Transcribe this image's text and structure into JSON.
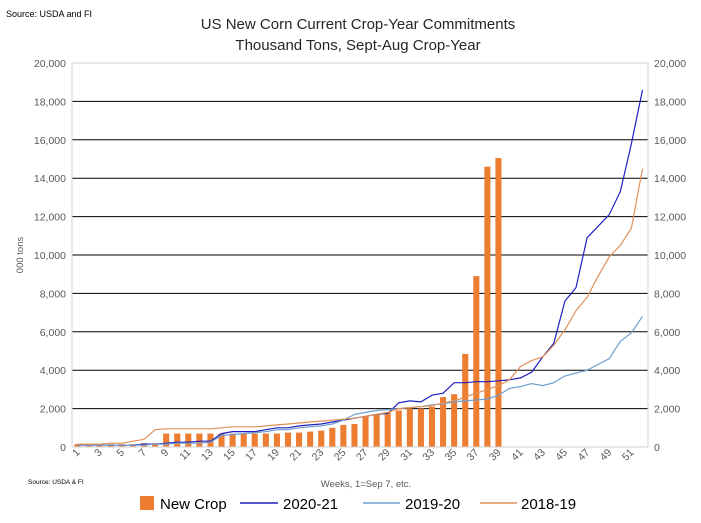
{
  "source_top": "Source: USDA and FI",
  "source_bottom": "Source: USDA & FI",
  "chart_data": {
    "type": "bar",
    "title": "US New Corn Current Crop-Year Commitments",
    "subtitle": "Thousand Tons, Sept-Aug Crop-Year",
    "xlabel": "Weeks, 1=Sep 7, etc.",
    "ylabel": "000 tons",
    "ylim": [
      0,
      20000
    ],
    "yticks": [
      "0",
      "2,000",
      "4,000",
      "6,000",
      "8,000",
      "10,000",
      "12,000",
      "14,000",
      "16,000",
      "18,000",
      "20,000"
    ],
    "y2ticks": [
      "0",
      "2,000",
      "4,000",
      "6,000",
      "8,000",
      "10,000",
      "12,000",
      "14,000",
      "16,000",
      "18,000",
      "20,000"
    ],
    "xticks": [
      "1",
      "3",
      "5",
      "7",
      "9",
      "11",
      "13",
      "15",
      "17",
      "19",
      "21",
      "23",
      "25",
      "27",
      "29",
      "31",
      "33",
      "35",
      "37",
      "39",
      "41",
      "43",
      "45",
      "47",
      "49",
      "51"
    ],
    "weeks": 52,
    "legend": [
      "New Crop",
      "2020-21",
      "2019-20",
      "2018-19"
    ],
    "colors": {
      "New Crop": "#ed7d31",
      "2020-21": "#1f1fbf",
      "2019-20": "#6f9fcf",
      "2018-19": "#e0915a"
    },
    "series": [
      {
        "name": "New Crop",
        "kind": "bar",
        "values": [
          150,
          150,
          150,
          150,
          150,
          150,
          200,
          200,
          700,
          700,
          700,
          700,
          700,
          700,
          700,
          700,
          700,
          700,
          700,
          750,
          750,
          800,
          850,
          1000,
          1150,
          1200,
          1600,
          1700,
          1800,
          1900,
          2000,
          2000,
          2100,
          2600,
          2750,
          4850,
          8900,
          14600,
          15050
        ]
      },
      {
        "name": "2020-21",
        "kind": "line",
        "values": [
          100,
          100,
          100,
          100,
          100,
          100,
          150,
          150,
          200,
          250,
          250,
          300,
          300,
          700,
          800,
          800,
          800,
          900,
          1000,
          1000,
          1100,
          1150,
          1200,
          1300,
          1400,
          1500,
          1600,
          1700,
          1750,
          2300,
          2400,
          2350,
          2700,
          2800,
          3350,
          3350,
          3400,
          3400,
          3450,
          3500,
          3600,
          3900,
          4700,
          5400,
          7600,
          8300,
          10900,
          11500,
          12100,
          13300,
          15800,
          18600
        ]
      },
      {
        "name": "2019-20",
        "kind": "line",
        "values": [
          100,
          100,
          100,
          100,
          100,
          100,
          100,
          150,
          150,
          200,
          200,
          200,
          250,
          600,
          650,
          700,
          750,
          800,
          900,
          900,
          1000,
          1050,
          1100,
          1200,
          1400,
          1700,
          1800,
          1900,
          1950,
          2000,
          2050,
          2100,
          2200,
          2250,
          2350,
          2400,
          2450,
          2500,
          2700,
          3050,
          3150,
          3300,
          3200,
          3350,
          3700,
          3850,
          4000,
          4300,
          4600,
          5500,
          5950,
          6800
        ]
      },
      {
        "name": "2018-19",
        "kind": "line",
        "values": [
          150,
          150,
          150,
          200,
          200,
          300,
          400,
          900,
          950,
          950,
          950,
          950,
          950,
          1000,
          1050,
          1050,
          1050,
          1100,
          1150,
          1200,
          1250,
          1300,
          1350,
          1400,
          1450,
          1500,
          1600,
          1700,
          1800,
          2000,
          2050,
          2100,
          2150,
          2300,
          2400,
          2600,
          2800,
          3000,
          3200,
          3500,
          4200,
          4500,
          4700,
          5300,
          6100,
          7100,
          7800,
          8900,
          9900,
          10500,
          11400,
          14500
        ]
      }
    ]
  }
}
